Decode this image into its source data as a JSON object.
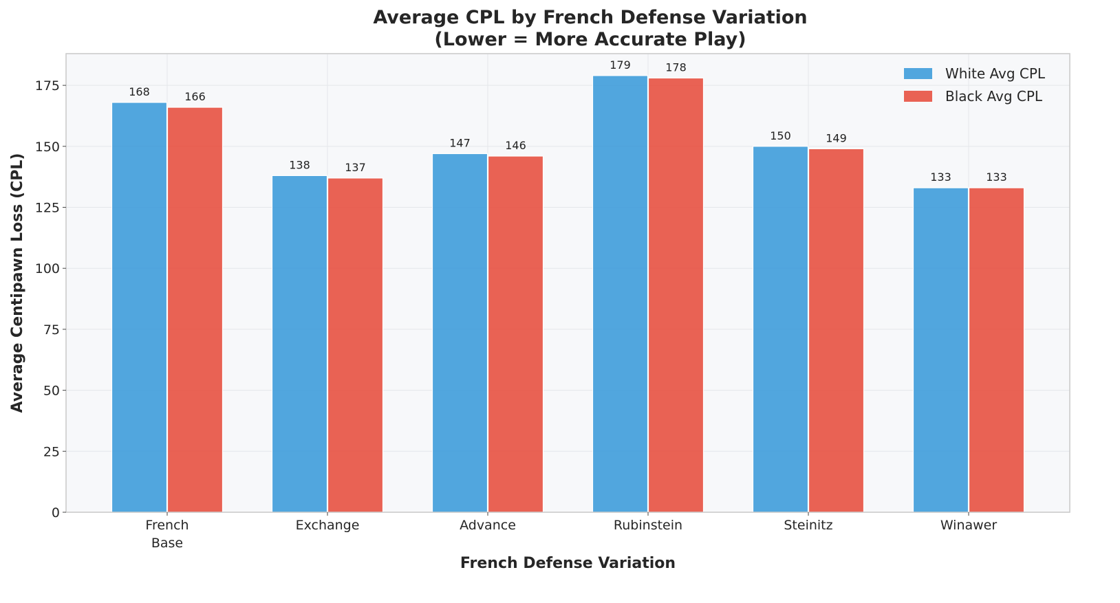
{
  "chart_data": {
    "type": "bar",
    "title_line1": "Average CPL by French Defense Variation",
    "title_line2": "(Lower = More Accurate Play)",
    "xlabel": "French Defense Variation",
    "ylabel": "Average Centipawn Loss (CPL)",
    "categories": [
      [
        "French",
        "Base"
      ],
      [
        "Exchange"
      ],
      [
        "Advance"
      ],
      [
        "Rubinstein"
      ],
      [
        "Steinitz"
      ],
      [
        "Winawer"
      ]
    ],
    "series": [
      {
        "name": "White Avg CPL",
        "color": "#3a9ad9",
        "values": [
          168,
          138,
          147,
          179,
          150,
          133
        ],
        "labels": [
          "168",
          "138",
          "147",
          "179",
          "150",
          "133"
        ]
      },
      {
        "name": "Black Avg CPL",
        "color": "#e74c3c",
        "values": [
          166,
          137,
          146,
          178,
          149,
          133
        ],
        "labels": [
          "166",
          "137",
          "146",
          "178",
          "149",
          "133"
        ]
      }
    ],
    "ylim": [
      0,
      188
    ],
    "yticks": [
      0,
      25,
      50,
      75,
      100,
      125,
      150,
      175
    ],
    "grid": true,
    "legend_position": "top-right",
    "plot_background": "#f7f8fa"
  }
}
